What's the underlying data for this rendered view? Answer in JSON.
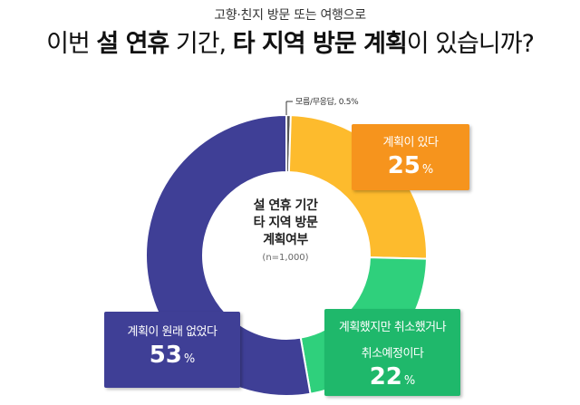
{
  "header": {
    "subtitle": "고향·친지 방문 또는 여행으로",
    "title_parts": [
      "이번 ",
      "설 연휴",
      " 기간, ",
      "타 지역 방문 계획",
      "이 있습니까?"
    ]
  },
  "center": {
    "line1": "설 연휴 기간",
    "line2": "타 지역 방문",
    "line3": "계획여부",
    "sample": "(n=1,000)"
  },
  "chart_data": {
    "type": "pie",
    "title": "이번 설 연휴 기간, 타 지역 방문 계획이 있습니까?",
    "subtitle": "고향·친지 방문 또는 여행으로",
    "slices": [
      {
        "label": "모름/무응답",
        "value": 0.5,
        "display": "0.5%",
        "color": "#555555"
      },
      {
        "label": "계획이 있다",
        "value": 25,
        "color": "#fdbb2d"
      },
      {
        "label": "계획했지만 취소했거나 취소예정이다",
        "value": 22,
        "color": "#2fd07c"
      },
      {
        "label": "계획이 원래 없었다",
        "value": 53,
        "color": "#3f3f96"
      }
    ],
    "unit": "%",
    "donut": true
  },
  "callouts": {
    "dontknow": {
      "label": "모름/무응답, 0.5%"
    },
    "yes": {
      "label": "계획이 있다",
      "value": "25",
      "unit": "%"
    },
    "cancel": {
      "label1": "계획했지만 취소했거나",
      "label2": "취소예정이다",
      "value": "22",
      "unit": "%"
    },
    "no": {
      "label": "계획이 원래 없었다",
      "value": "53",
      "unit": "%"
    }
  },
  "colors": {
    "yes_slice": "#fdbb2d",
    "yes_box": "#f6941d",
    "cancel_slice": "#2fd07c",
    "cancel_box": "#1fb86b",
    "no": "#3f3f96"
  }
}
